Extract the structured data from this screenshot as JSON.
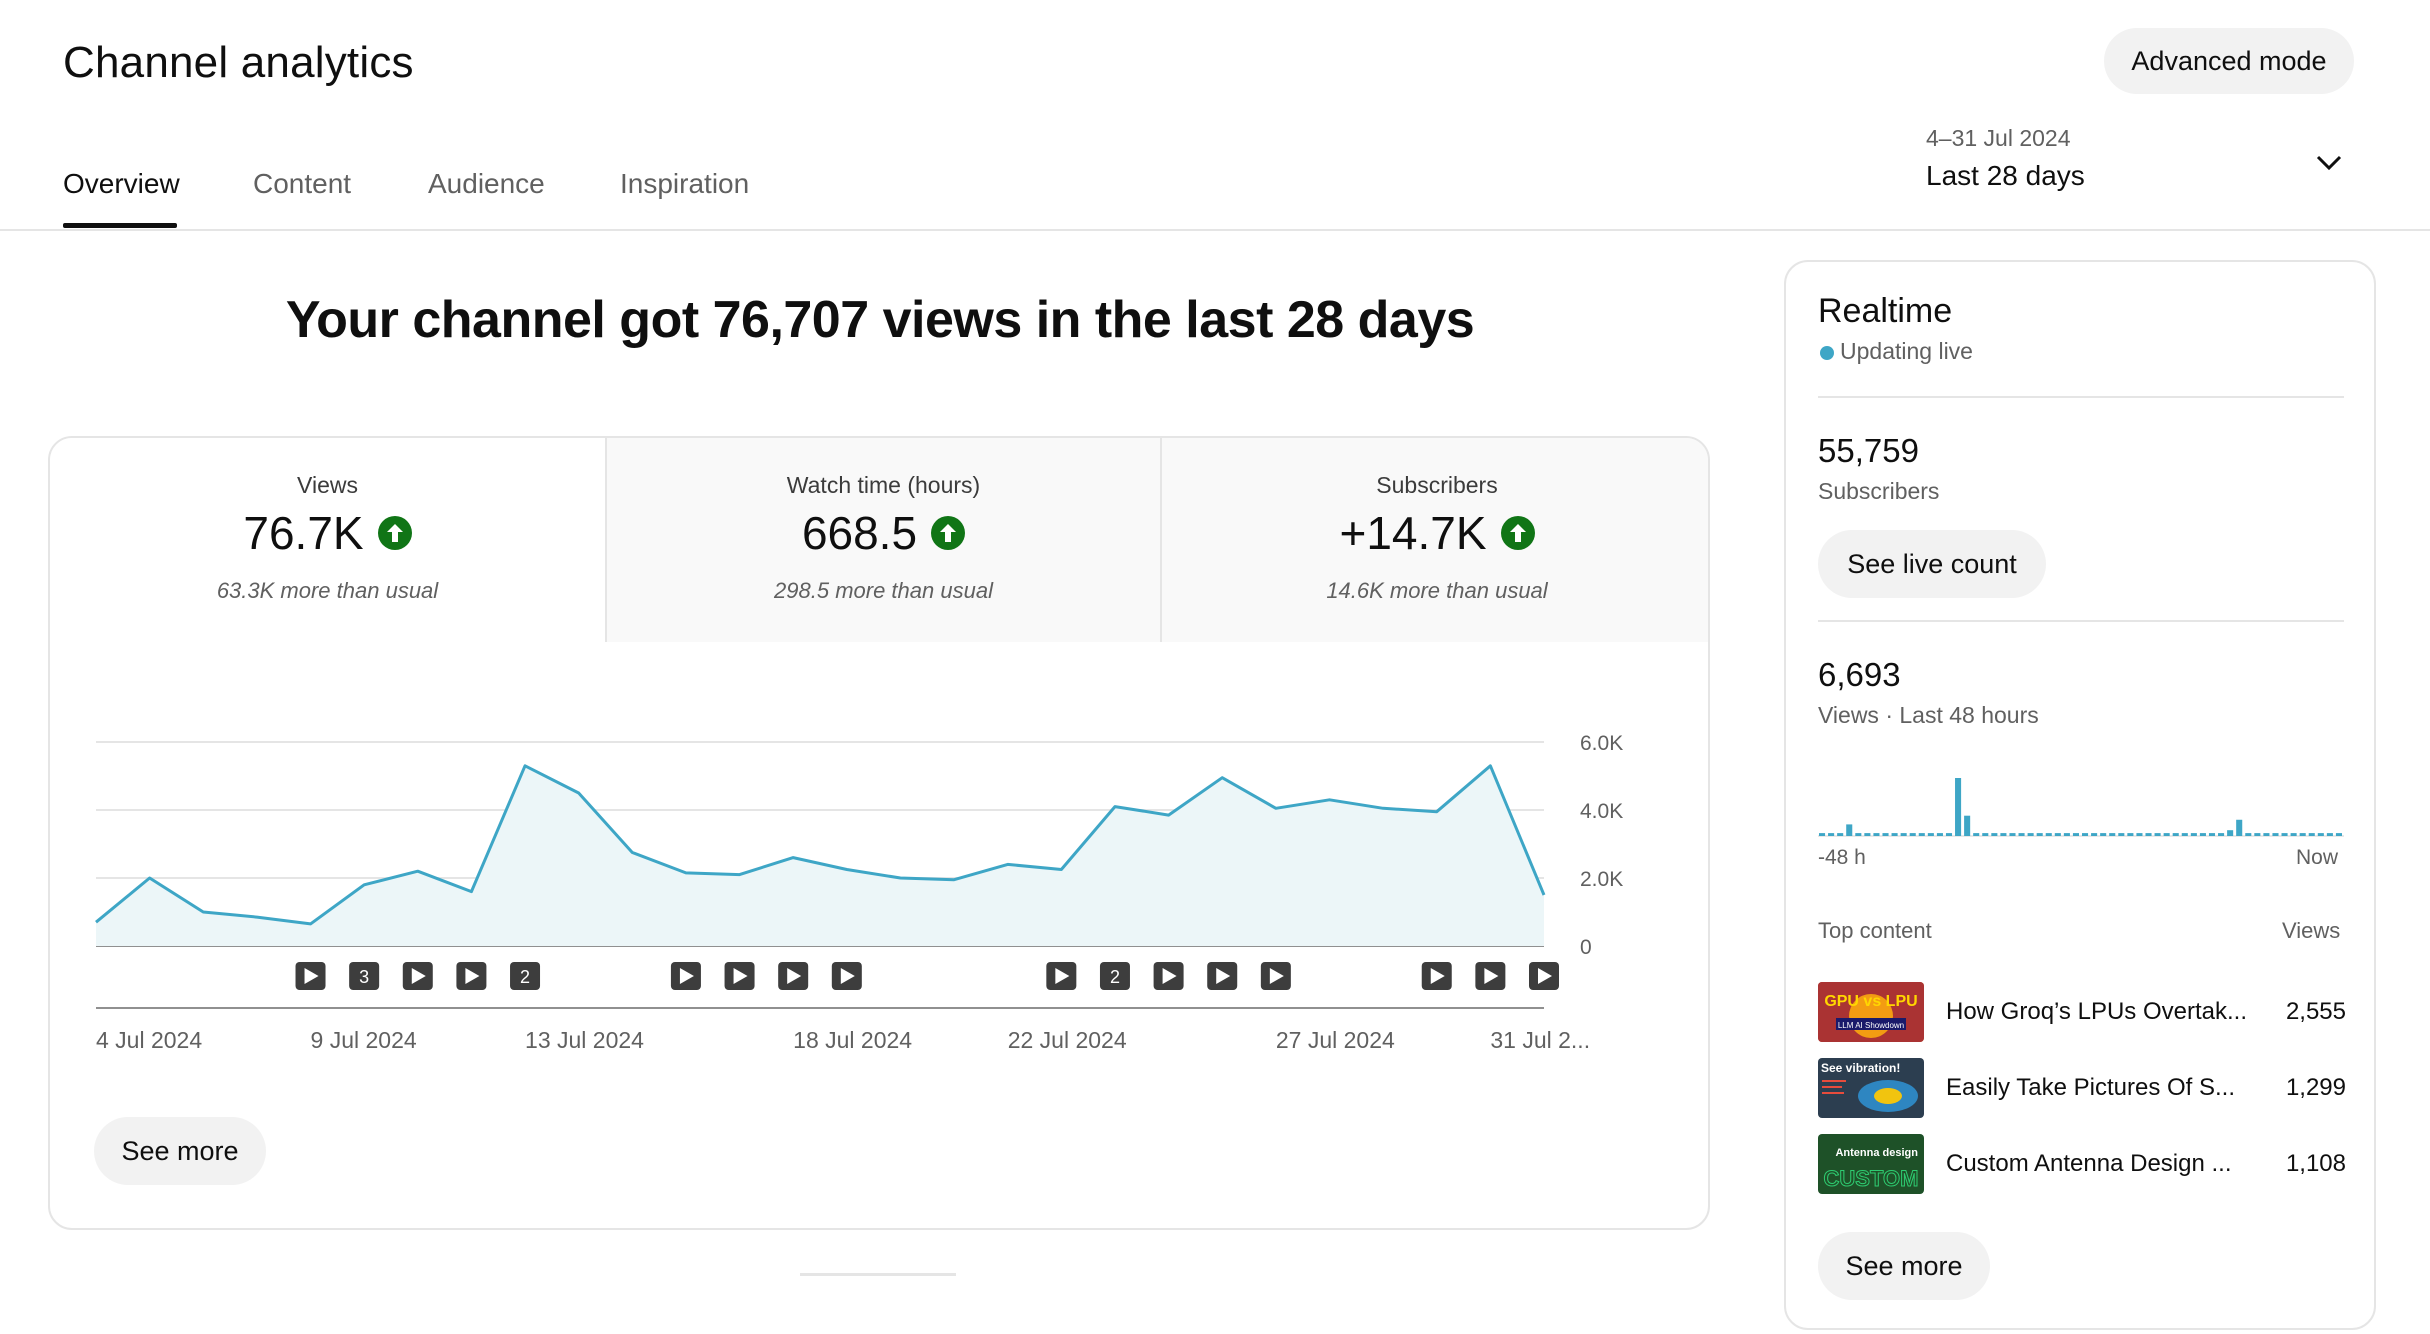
{
  "header": {
    "title": "Channel analytics",
    "advanced_mode": "Advanced mode",
    "tabs": [
      {
        "label": "Overview",
        "active": true
      },
      {
        "label": "Content",
        "active": false
      },
      {
        "label": "Audience",
        "active": false
      },
      {
        "label": "Inspiration",
        "active": false
      }
    ],
    "date_range": "4–31 Jul 2024",
    "date_label": "Last 28 days"
  },
  "headline": "Your channel got 76,707 views in the last 28 days",
  "metrics": [
    {
      "label": "Views",
      "value": "76.7K",
      "note": "63.3K more than usual",
      "trend": "up"
    },
    {
      "label": "Watch time (hours)",
      "value": "668.5",
      "note": "298.5 more than usual",
      "trend": "up"
    },
    {
      "label": "Subscribers",
      "value": "+14.7K",
      "note": "14.6K more than usual",
      "trend": "up"
    }
  ],
  "chart_data": {
    "type": "area",
    "x": [
      "4 Jul",
      "5 Jul",
      "6 Jul",
      "7 Jul",
      "8 Jul",
      "9 Jul",
      "10 Jul",
      "11 Jul",
      "12 Jul",
      "13 Jul",
      "14 Jul",
      "15 Jul",
      "16 Jul",
      "17 Jul",
      "18 Jul",
      "19 Jul",
      "20 Jul",
      "21 Jul",
      "22 Jul",
      "23 Jul",
      "24 Jul",
      "25 Jul",
      "26 Jul",
      "27 Jul",
      "28 Jul",
      "29 Jul",
      "30 Jul",
      "31 Jul"
    ],
    "values": [
      700,
      2000,
      1000,
      850,
      650,
      1800,
      2200,
      1600,
      5300,
      4500,
      2750,
      2150,
      2100,
      2600,
      2250,
      2000,
      1950,
      2400,
      2250,
      4100,
      3850,
      4950,
      4050,
      4300,
      4050,
      3950,
      5300,
      1500
    ],
    "yticks": [
      "0",
      "2.0K",
      "4.0K",
      "6.0K"
    ],
    "yrange": [
      0,
      6000
    ],
    "xtick_labels": [
      {
        "label": "4 Jul 2024",
        "index": 0
      },
      {
        "label": "9 Jul 2024",
        "index": 4
      },
      {
        "label": "13 Jul 2024",
        "index": 8
      },
      {
        "label": "18 Jul 2024",
        "index": 13
      },
      {
        "label": "22 Jul 2024",
        "index": 17
      },
      {
        "label": "27 Jul 2024",
        "index": 22
      },
      {
        "label": "31 Jul 2...",
        "index": 26
      }
    ],
    "markers": [
      {
        "index": 4,
        "kind": "play"
      },
      {
        "index": 5,
        "kind": "count",
        "label": "3"
      },
      {
        "index": 6,
        "kind": "play"
      },
      {
        "index": 7,
        "kind": "play"
      },
      {
        "index": 8,
        "kind": "count",
        "label": "2"
      },
      {
        "index": 11,
        "kind": "play"
      },
      {
        "index": 12,
        "kind": "play"
      },
      {
        "index": 13,
        "kind": "play"
      },
      {
        "index": 14,
        "kind": "play"
      },
      {
        "index": 18,
        "kind": "play"
      },
      {
        "index": 19,
        "kind": "count",
        "label": "2"
      },
      {
        "index": 20,
        "kind": "play"
      },
      {
        "index": 21,
        "kind": "play"
      },
      {
        "index": 22,
        "kind": "play"
      },
      {
        "index": 25,
        "kind": "play"
      },
      {
        "index": 26,
        "kind": "play"
      },
      {
        "index": 27,
        "kind": "play"
      }
    ],
    "line_color": "#3ea6c6",
    "fill_color": "#ecf6f8"
  },
  "see_more": "See more",
  "realtime": {
    "title": "Realtime",
    "live_label": "Updating live",
    "subscribers_value": "55,759",
    "subscribers_label": "Subscribers",
    "see_live_count": "See live count",
    "views_value": "6,693",
    "views_label": "Views · Last 48 hours",
    "mini_chart": {
      "type": "bar",
      "values": [
        0.05,
        0.05,
        0.05,
        0.2,
        0.05,
        0.05,
        0.05,
        0.05,
        0.05,
        0.05,
        0.05,
        0.05,
        0.05,
        0.05,
        0.05,
        1.0,
        0.35,
        0.05,
        0.05,
        0.05,
        0.05,
        0.05,
        0.05,
        0.05,
        0.05,
        0.05,
        0.05,
        0.05,
        0.05,
        0.05,
        0.05,
        0.05,
        0.05,
        0.05,
        0.05,
        0.05,
        0.05,
        0.05,
        0.05,
        0.05,
        0.05,
        0.05,
        0.05,
        0.05,
        0.05,
        0.1,
        0.28,
        0.05,
        0.05,
        0.05,
        0.05,
        0.05,
        0.05,
        0.05,
        0.05,
        0.05,
        0.05,
        0.05
      ],
      "color": "#3ea6c6"
    },
    "axis_start": "-48 h",
    "axis_end": "Now",
    "top_content_label": "Top content",
    "views_col_label": "Views",
    "top_content": [
      {
        "title": "How Groq’s LPUs Overtak...",
        "views": "2,555",
        "thumb_text": "GPU vs LPU",
        "thumb_sub": "LLM AI Showdown"
      },
      {
        "title": "Easily Take Pictures Of S...",
        "views": "1,299",
        "thumb_text": "See vibration!",
        "thumb_sub": ""
      },
      {
        "title": "Custom Antenna Design ...",
        "views": "1,108",
        "thumb_text": "Antenna design",
        "thumb_sub": "CUSTOM"
      }
    ],
    "see_more": "See more"
  }
}
